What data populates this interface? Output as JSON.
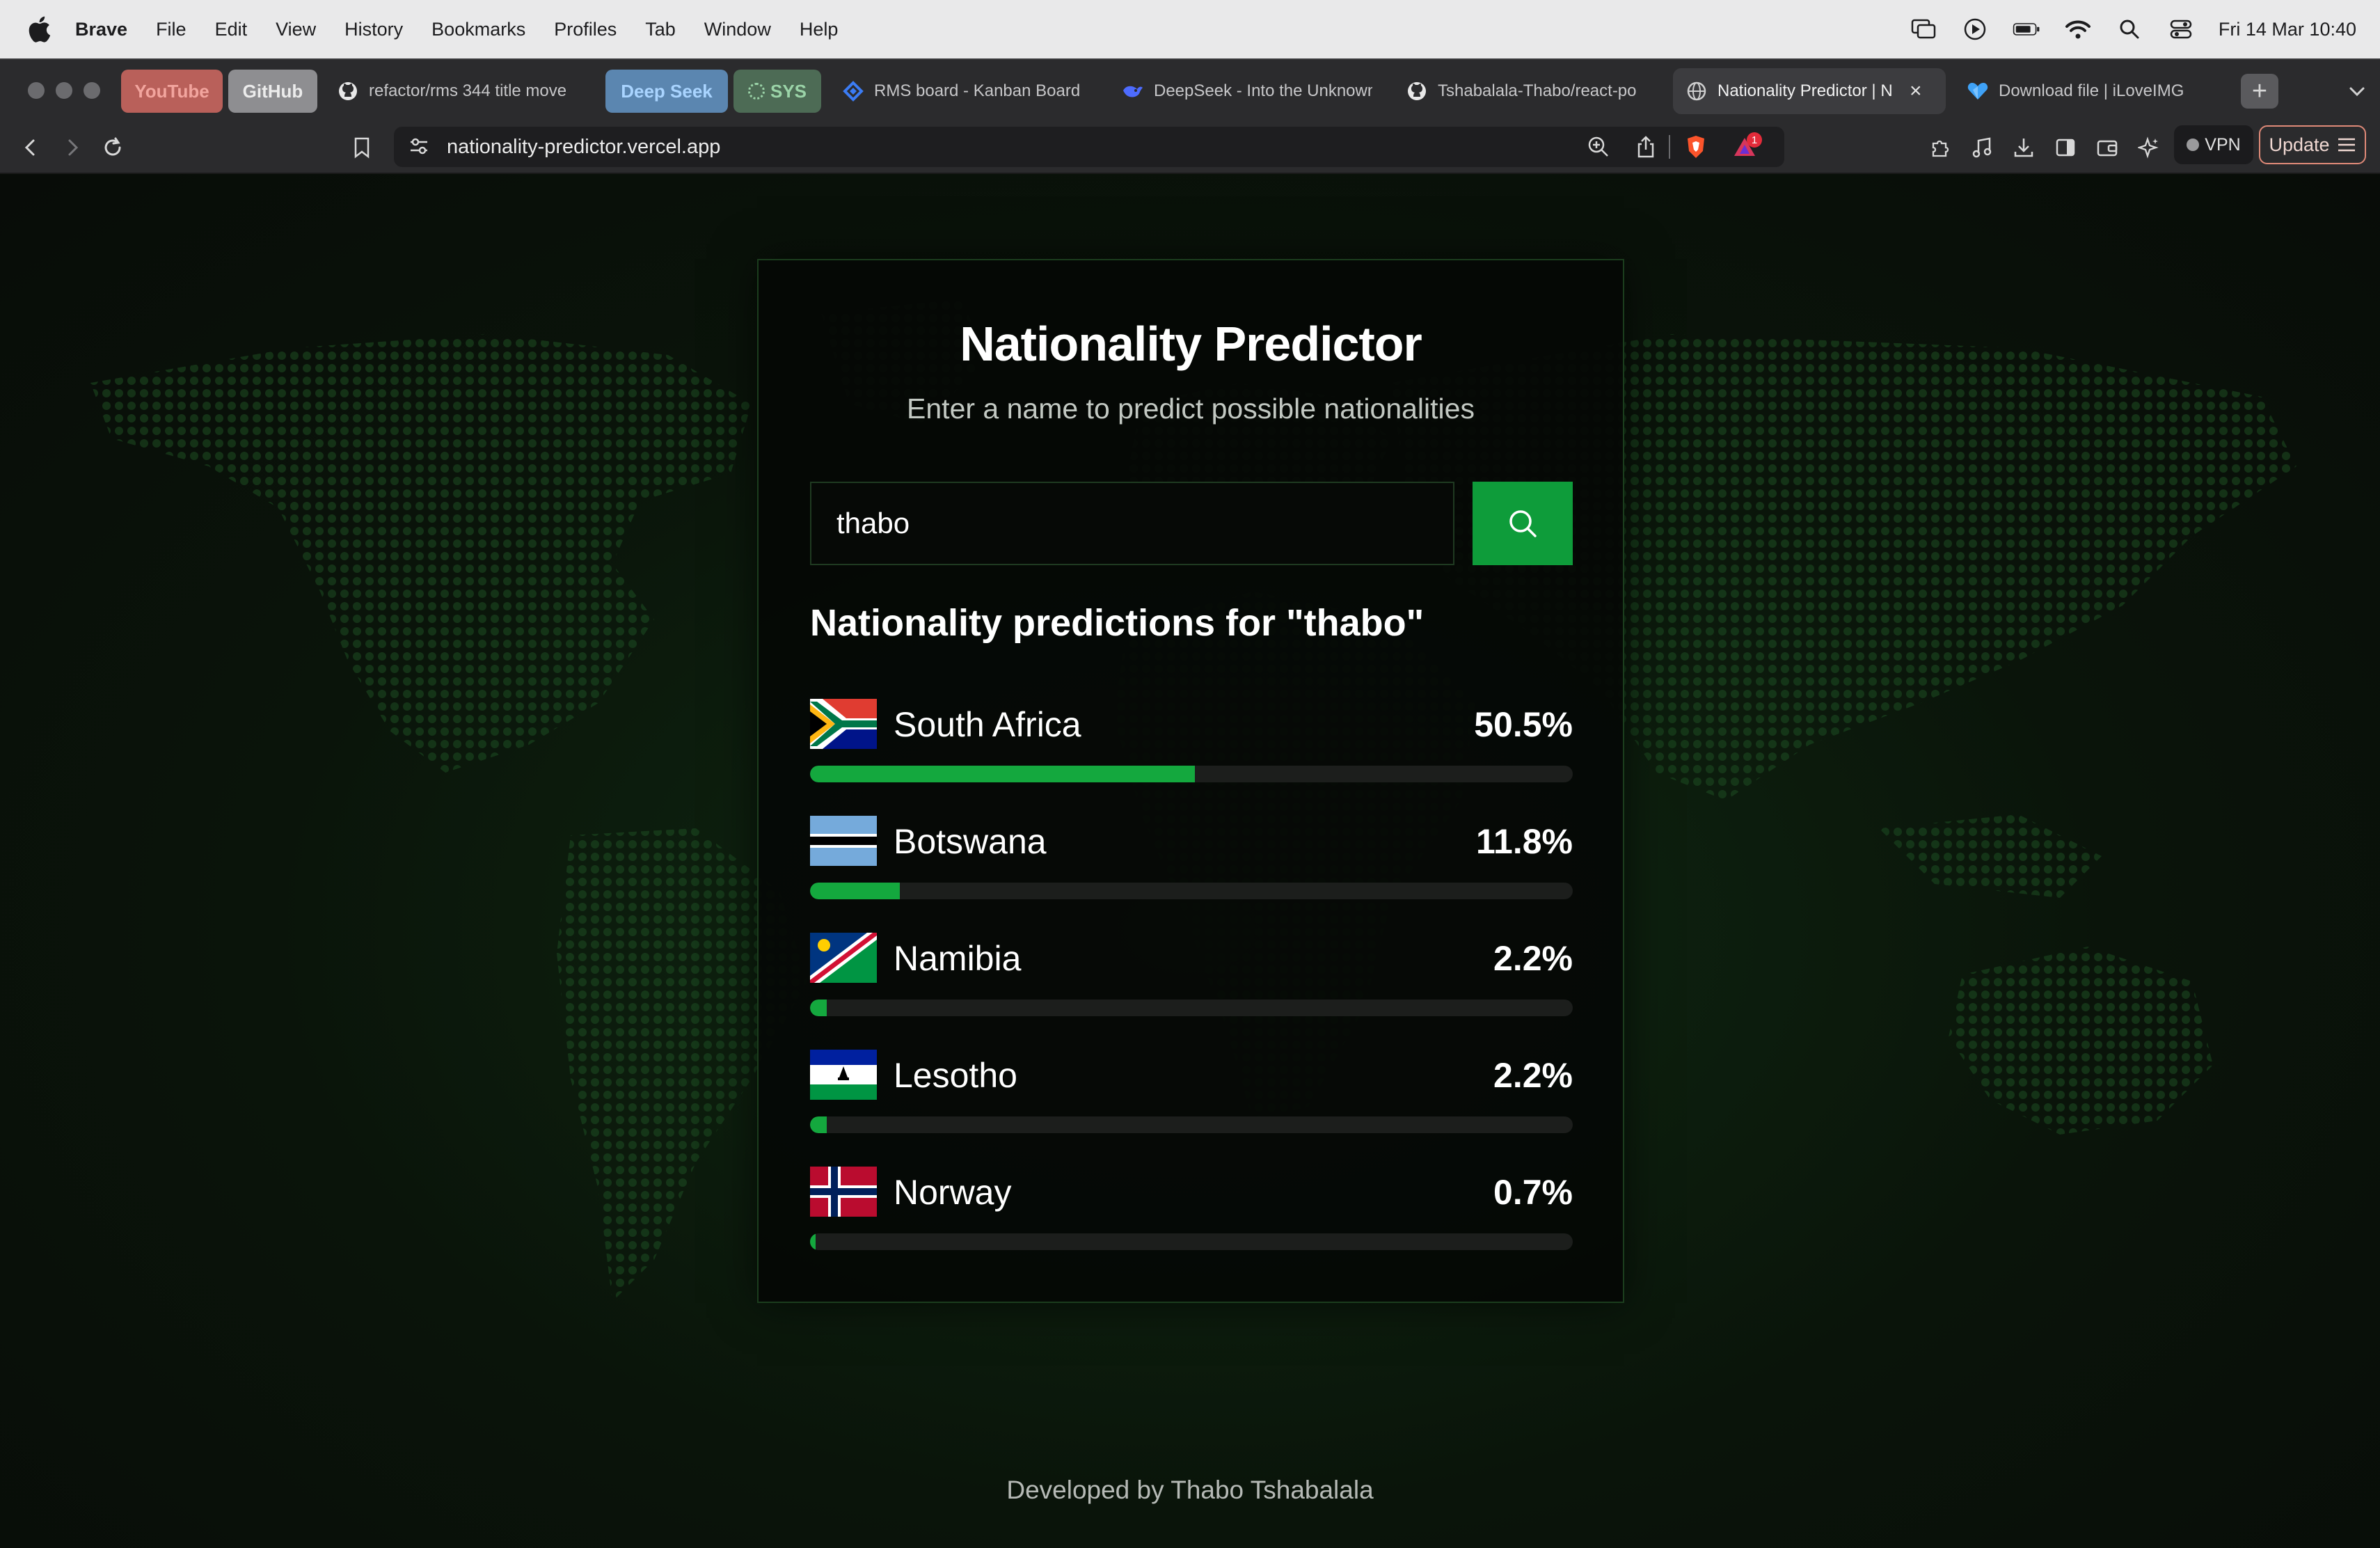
{
  "menubar": {
    "items": [
      "Brave",
      "File",
      "Edit",
      "View",
      "History",
      "Bookmarks",
      "Profiles",
      "Tab",
      "Window",
      "Help"
    ],
    "clock": "Fri 14 Mar  10:40"
  },
  "tabs": {
    "groups": [
      {
        "label": "YouTube",
        "bg": "#b9605a",
        "fg": "#f2a59e"
      },
      {
        "label": "GitHub",
        "bg": "#8e8e91",
        "fg": "#ececec"
      },
      {
        "label": "Deep Seek",
        "bg": "#5b86b0",
        "fg": "#a9d4ff"
      },
      {
        "label": "SYS",
        "bg": "#4d6b55",
        "fg": "#9bd4a8"
      }
    ],
    "items": [
      {
        "label": "refactor/rms 344 title move",
        "icon": "github-icon"
      },
      {
        "label": "RMS board - Kanban Board",
        "icon": "jira-icon"
      },
      {
        "label": "DeepSeek - Into the Unknown",
        "icon": "deepseek-icon"
      },
      {
        "label": "Tshabalala-Thabo/react-po",
        "icon": "github-icon"
      },
      {
        "label": "Nationality Predictor | N",
        "icon": "globe-icon",
        "active": true
      },
      {
        "label": "Download file | iLoveIMG",
        "icon": "iloveimg-icon"
      }
    ],
    "close": "×",
    "new_tab": "+"
  },
  "toolbar": {
    "url": "nationality-predictor.vercel.app",
    "vpn_label": "VPN",
    "update_label": "Update",
    "shields_badge": "1"
  },
  "app": {
    "title": "Nationality Predictor",
    "subtitle": "Enter a name to predict possible nationalities",
    "search_value": "thabo",
    "results_heading": "Nationality predictions for \"thabo\"",
    "accent": "#14a83e",
    "results": [
      {
        "country": "South Africa",
        "percent": "50.5%",
        "fraction": 0.505,
        "flag": "za"
      },
      {
        "country": "Botswana",
        "percent": "11.8%",
        "fraction": 0.118,
        "flag": "bw"
      },
      {
        "country": "Namibia",
        "percent": "2.2%",
        "fraction": 0.022,
        "flag": "na"
      },
      {
        "country": "Lesotho",
        "percent": "2.2%",
        "fraction": 0.022,
        "flag": "ls"
      },
      {
        "country": "Norway",
        "percent": "0.7%",
        "fraction": 0.007,
        "flag": "no"
      }
    ],
    "footer": "Developed by Thabo Tshabalala"
  }
}
